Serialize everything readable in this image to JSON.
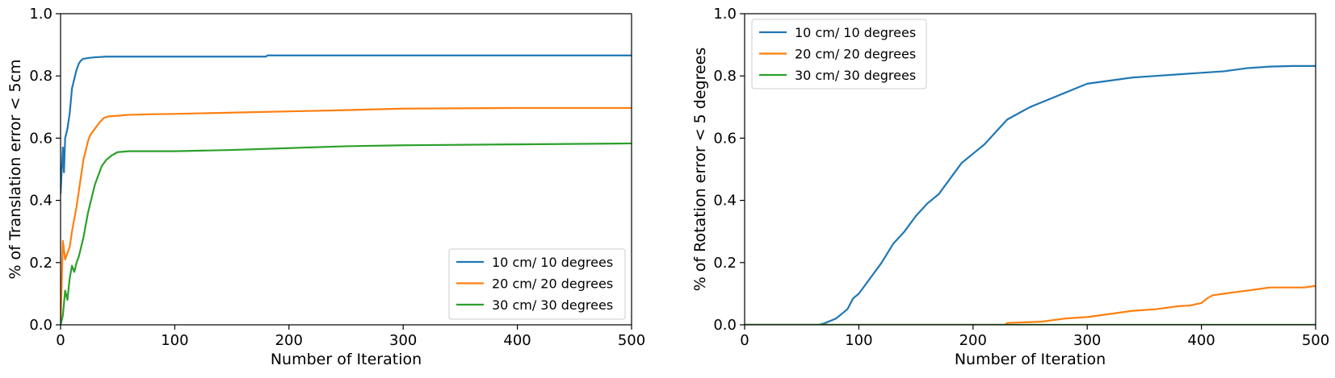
{
  "chart_data": [
    {
      "type": "line",
      "title": "",
      "xlabel": "Number of Iteration",
      "ylabel": "% of Translation error < 5cm",
      "xlim": [
        0,
        500
      ],
      "ylim": [
        0,
        1.0
      ],
      "xticks": [
        0,
        100,
        200,
        300,
        400,
        500
      ],
      "yticks": [
        0.0,
        0.2,
        0.4,
        0.6,
        0.8,
        1.0
      ],
      "xtick_labels": [
        "0",
        "100",
        "200",
        "300",
        "400",
        "500"
      ],
      "ytick_labels": [
        "0.0",
        "0.2",
        "0.4",
        "0.6",
        "0.8",
        "1.0"
      ],
      "grid": false,
      "legend_position": "lower-right",
      "series": [
        {
          "name": "10 cm/ 10 degrees",
          "color": "#1f77b4",
          "x": [
            0,
            2,
            3,
            4,
            6,
            8,
            10,
            12,
            14,
            16,
            18,
            20,
            25,
            30,
            40,
            60,
            100,
            180,
            181,
            300,
            500
          ],
          "y": [
            0.42,
            0.57,
            0.49,
            0.6,
            0.63,
            0.68,
            0.76,
            0.79,
            0.82,
            0.84,
            0.85,
            0.855,
            0.858,
            0.86,
            0.862,
            0.862,
            0.862,
            0.862,
            0.866,
            0.866,
            0.866
          ]
        },
        {
          "name": "20 cm/ 20 degrees",
          "color": "#ff7f0e",
          "x": [
            0,
            2,
            4,
            6,
            8,
            10,
            12,
            14,
            16,
            18,
            20,
            22,
            24,
            26,
            28,
            30,
            34,
            38,
            42,
            50,
            60,
            80,
            100,
            150,
            200,
            250,
            300,
            350,
            400,
            500
          ],
          "y": [
            0.0,
            0.27,
            0.21,
            0.23,
            0.25,
            0.3,
            0.34,
            0.38,
            0.43,
            0.48,
            0.53,
            0.56,
            0.59,
            0.61,
            0.62,
            0.63,
            0.65,
            0.665,
            0.67,
            0.672,
            0.675,
            0.677,
            0.678,
            0.682,
            0.686,
            0.69,
            0.695,
            0.696,
            0.697,
            0.697
          ]
        },
        {
          "name": "30 cm/ 30 degrees",
          "color": "#2ca02c",
          "x": [
            0,
            2,
            4,
            6,
            8,
            10,
            12,
            14,
            16,
            18,
            20,
            22,
            24,
            26,
            28,
            30,
            32,
            34,
            36,
            38,
            40,
            45,
            50,
            60,
            80,
            100,
            150,
            200,
            250,
            300,
            400,
            500
          ],
          "y": [
            0.0,
            0.03,
            0.11,
            0.08,
            0.15,
            0.19,
            0.17,
            0.2,
            0.22,
            0.25,
            0.28,
            0.32,
            0.36,
            0.39,
            0.42,
            0.45,
            0.47,
            0.49,
            0.51,
            0.52,
            0.53,
            0.545,
            0.555,
            0.558,
            0.558,
            0.558,
            0.562,
            0.568,
            0.574,
            0.577,
            0.58,
            0.583
          ]
        }
      ]
    },
    {
      "type": "line",
      "title": "",
      "xlabel": "Number of Iteration",
      "ylabel": "% of Rotation error < 5 degrees",
      "xlim": [
        0,
        500
      ],
      "ylim": [
        0,
        1.0
      ],
      "xticks": [
        0,
        100,
        200,
        300,
        400,
        500
      ],
      "yticks": [
        0.0,
        0.2,
        0.4,
        0.6,
        0.8,
        1.0
      ],
      "xtick_labels": [
        "0",
        "100",
        "200",
        "300",
        "400",
        "500"
      ],
      "ytick_labels": [
        "0.0",
        "0.2",
        "0.4",
        "0.6",
        "0.8",
        "1.0"
      ],
      "grid": false,
      "legend_position": "upper-left",
      "series": [
        {
          "name": "10 cm/ 10 degrees",
          "color": "#1f77b4",
          "x": [
            0,
            65,
            70,
            80,
            90,
            95,
            100,
            110,
            120,
            130,
            140,
            150,
            160,
            170,
            180,
            190,
            200,
            210,
            220,
            230,
            240,
            250,
            260,
            270,
            280,
            290,
            300,
            320,
            340,
            360,
            380,
            400,
            420,
            440,
            460,
            480,
            500
          ],
          "y": [
            0.0,
            0.0,
            0.005,
            0.02,
            0.05,
            0.085,
            0.1,
            0.15,
            0.2,
            0.26,
            0.3,
            0.35,
            0.39,
            0.42,
            0.47,
            0.52,
            0.55,
            0.58,
            0.62,
            0.66,
            0.68,
            0.7,
            0.715,
            0.73,
            0.745,
            0.76,
            0.775,
            0.785,
            0.795,
            0.8,
            0.805,
            0.81,
            0.815,
            0.825,
            0.83,
            0.832,
            0.832
          ]
        },
        {
          "name": "20 cm/ 20 degrees",
          "color": "#ff7f0e",
          "x": [
            0,
            228,
            230,
            260,
            280,
            300,
            320,
            340,
            360,
            380,
            390,
            400,
            405,
            410,
            420,
            430,
            440,
            450,
            460,
            470,
            480,
            490,
            500
          ],
          "y": [
            0.0,
            0.0,
            0.006,
            0.01,
            0.02,
            0.025,
            0.035,
            0.045,
            0.05,
            0.06,
            0.062,
            0.07,
            0.085,
            0.095,
            0.1,
            0.105,
            0.11,
            0.115,
            0.12,
            0.12,
            0.12,
            0.12,
            0.125
          ]
        },
        {
          "name": "30 cm/ 30 degrees",
          "color": "#2ca02c",
          "x": [
            0,
            500
          ],
          "y": [
            0.0,
            0.0
          ]
        }
      ]
    }
  ]
}
